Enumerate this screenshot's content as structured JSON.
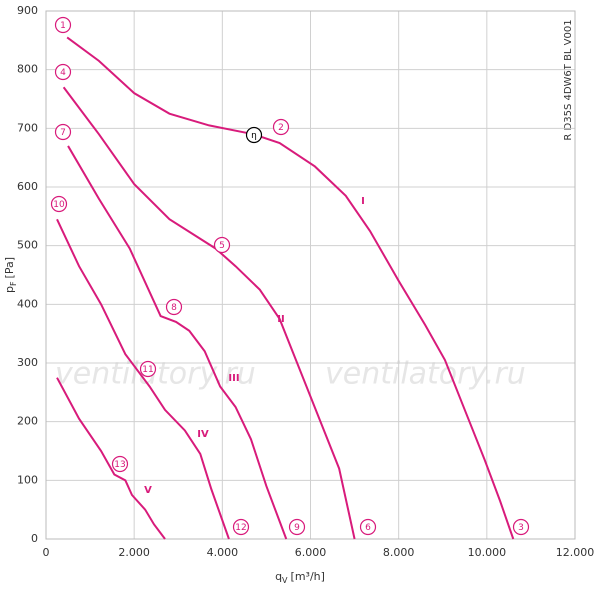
{
  "chart_data": {
    "type": "line",
    "x_label": {
      "symbol": "q",
      "sub": "V",
      "unit": "[m³/h]"
    },
    "y_label": {
      "symbol": "p",
      "sub": "F",
      "unit": "[Pa]"
    },
    "code": "R D35S 4DW6T BL V001",
    "watermark": "ventilatory.ru",
    "color": "#d81b7b",
    "grid": true,
    "xlim": [
      0,
      12000
    ],
    "xticks": [
      0,
      {
        "value": 2000,
        "label": "2.000"
      },
      {
        "value": 4000,
        "label": "4.000"
      },
      {
        "value": 6000,
        "label": "6.000"
      },
      {
        "value": 8000,
        "label": "8.000"
      },
      {
        "value": 10000,
        "label": "10.000"
      },
      {
        "value": 12000,
        "label": "12.000"
      }
    ],
    "ylim": [
      0,
      900
    ],
    "yticks": [
      0,
      100,
      200,
      300,
      400,
      500,
      600,
      700,
      800,
      900
    ],
    "annotations": [
      "1",
      "4",
      "7",
      "10",
      "13",
      "11",
      "8",
      "5",
      "2",
      "η",
      "3",
      "6",
      "9",
      "12"
    ],
    "series": [
      {
        "name": "I",
        "x": [
          480,
          1200,
          2000,
          2800,
          3700,
          4700,
          5300,
          6100,
          6800,
          7350,
          8000,
          8600,
          9050,
          9500,
          9950,
          10300,
          10600
        ],
        "values": [
          855,
          815,
          760,
          725,
          705,
          690,
          675,
          635,
          585,
          525,
          440,
          365,
          305,
          220,
          135,
          65,
          0
        ]
      },
      {
        "name": "II",
        "x": [
          400,
          1200,
          2000,
          2800,
          3850,
          4300,
          4850,
          5300,
          5750,
          6200,
          6650,
          7000
        ],
        "values": [
          770,
          690,
          605,
          545,
          495,
          465,
          425,
          375,
          290,
          205,
          120,
          0
        ]
      },
      {
        "name": "III",
        "x": [
          500,
          1200,
          1900,
          2600,
          2950,
          3250,
          3600,
          3950,
          4300,
          4650,
          5000,
          5450
        ],
        "values": [
          670,
          580,
          495,
          380,
          370,
          355,
          320,
          260,
          225,
          170,
          90,
          0
        ]
      },
      {
        "name": "IV",
        "x": [
          250,
          750,
          1250,
          1800,
          2350,
          2700,
          3150,
          3500,
          3750,
          4150
        ],
        "values": [
          545,
          465,
          400,
          315,
          260,
          220,
          185,
          145,
          85,
          0
        ]
      },
      {
        "name": "V",
        "x": [
          250,
          750,
          1250,
          1550,
          1800,
          1950,
          2250,
          2450,
          2700
        ],
        "values": [
          275,
          205,
          150,
          110,
          100,
          75,
          50,
          25,
          0
        ]
      }
    ]
  }
}
